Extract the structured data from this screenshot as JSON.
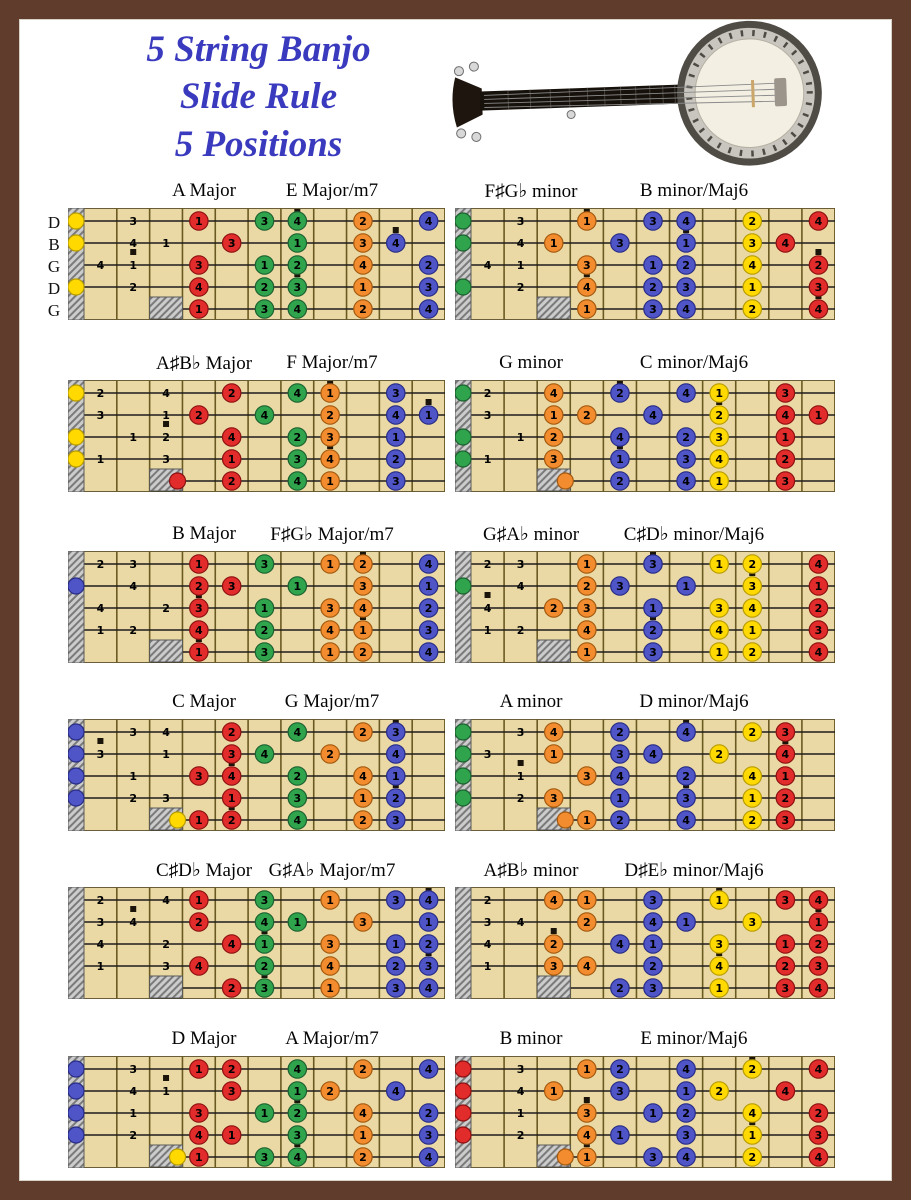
{
  "title": {
    "lines": [
      "5 String Banjo",
      "Slide Rule",
      "5 Positions"
    ],
    "color": "#3a3abe"
  },
  "strings": [
    "D",
    "B",
    "G",
    "D",
    "G"
  ],
  "rows": [
    {
      "labels": [
        "A Major",
        "E Major/m7",
        "F♯G♭ minor",
        "B minor/Maj6"
      ],
      "left": {
        "root": "A",
        "pc": 9,
        "scale": "major",
        "open": "yellow",
        "fifth": null
      },
      "right": {
        "root": "F♯",
        "pc": 6,
        "scale": "minor",
        "open": "green",
        "fifth": null
      }
    },
    {
      "labels": [
        "A♯B♭ Major",
        "F Major/m7",
        "G minor",
        "C minor/Maj6"
      ],
      "left": {
        "root": "A♯",
        "pc": 10,
        "scale": "major",
        "open": "yellow",
        "fifth": "red"
      },
      "right": {
        "root": "G",
        "pc": 7,
        "scale": "minor",
        "open": "green",
        "fifth": "orange"
      }
    },
    {
      "labels": [
        "B Major",
        "F♯G♭ Major/m7",
        "G♯A♭ minor",
        "C♯D♭ minor/Maj6"
      ],
      "left": {
        "root": "B",
        "pc": 11,
        "scale": "major",
        "open": "blue",
        "fifth": null
      },
      "right": {
        "root": "G♯",
        "pc": 8,
        "scale": "minor",
        "open": "green",
        "fifth": null
      }
    },
    {
      "labels": [
        "C Major",
        "G Major/m7",
        "A minor",
        "D minor/Maj6"
      ],
      "left": {
        "root": "C",
        "pc": 0,
        "scale": "major",
        "open": "blue",
        "fifth": "yellow"
      },
      "right": {
        "root": "A",
        "pc": 9,
        "scale": "minor",
        "open": "green",
        "fifth": "orange"
      }
    },
    {
      "labels": [
        "C♯D♭ Major",
        "G♯A♭ Major/m7",
        "A♯B♭ minor",
        "D♯E♭ minor/Maj6"
      ],
      "left": {
        "root": "C♯",
        "pc": 1,
        "scale": "major",
        "open": "blue",
        "fifth": null
      },
      "right": {
        "root": "A♯",
        "pc": 10,
        "scale": "minor",
        "open": "green",
        "fifth": null
      }
    },
    {
      "labels": [
        "D Major",
        "A Major/m7",
        "B minor",
        "E minor/Maj6"
      ],
      "left": {
        "root": "D",
        "pc": 2,
        "scale": "major",
        "open": "blue",
        "fifth": "yellow"
      },
      "right": {
        "root": "B",
        "pc": 11,
        "scale": "minor",
        "open": "red",
        "fifth": "orange"
      }
    }
  ],
  "palette": {
    "yellow": [
      "#ffd900",
      "#b79c00"
    ],
    "red": [
      "#e22b2b",
      "#8c1111"
    ],
    "green": [
      "#2fa44c",
      "#1c6130"
    ],
    "orange": [
      "#f28c2e",
      "#a3590f"
    ],
    "blue": [
      "#4f55c7",
      "#272c85"
    ]
  },
  "board": {
    "bg": "#ead9a4",
    "fret_line": "#6a5a22",
    "string_line": "#1c1c1c",
    "nut_fill": "#cccccc",
    "frame": "#5f3c2b",
    "paper": "#ffffff"
  },
  "chart_data": {
    "type": "fretboard-diagram",
    "tuning_labels": [
      "D",
      "B",
      "G",
      "D",
      "G"
    ],
    "tuning_pcs": [
      2,
      11,
      7,
      2,
      7
    ],
    "frets_shown": 11,
    "scales": {
      "major": [
        0,
        2,
        4,
        5,
        7,
        9,
        11
      ],
      "minor": [
        0,
        2,
        3,
        5,
        7,
        8,
        10
      ]
    },
    "zones": {
      "left": [
        {
          "from": 1,
          "to": 3,
          "color": "plain"
        },
        {
          "from": 4,
          "to": 5,
          "color": "red"
        },
        {
          "from": 6,
          "to": 7,
          "color": "green"
        },
        {
          "from": 8,
          "to": 9,
          "color": "orange"
        },
        {
          "from": 10,
          "to": 11,
          "color": "blue"
        }
      ],
      "right": [
        {
          "from": 1,
          "to": 2,
          "color": "plain"
        },
        {
          "from": 3,
          "to": 4,
          "color": "orange"
        },
        {
          "from": 5,
          "to": 7,
          "color": "blue"
        },
        {
          "from": 8,
          "to": 9,
          "color": "yellow"
        },
        {
          "from": 10,
          "to": 11,
          "color": "red"
        }
      ]
    }
  }
}
